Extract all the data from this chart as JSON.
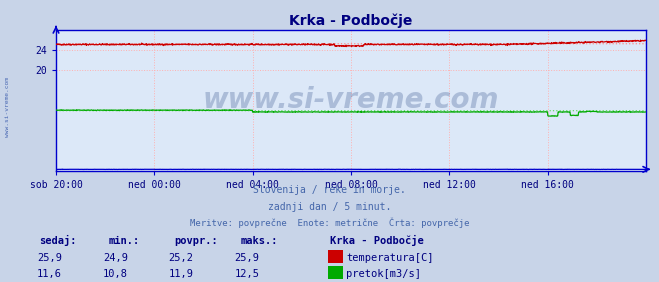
{
  "title": "Krka - Podbočje",
  "title_color": "#000080",
  "bg_color": "#c8d4e8",
  "plot_bg_color": "#dce8f8",
  "grid_color": "#ffb0b0",
  "xlabel_color": "#000080",
  "tick_color": "#000080",
  "axis_color": "#0000cc",
  "subtitle_lines": [
    "Slovenija / reke in morje.",
    "zadnji dan / 5 minut.",
    "Meritve: povprečne  Enote: metrične  Črta: povprečje"
  ],
  "subtitle_color": "#4466aa",
  "xtick_labels": [
    "sob 20:00",
    "ned 00:00",
    "ned 04:00",
    "ned 08:00",
    "ned 12:00",
    "ned 16:00"
  ],
  "xtick_positions": [
    0,
    240,
    480,
    720,
    960,
    1200
  ],
  "n_points": 1440,
  "temp_base": 25.2,
  "temp_min": 24.9,
  "temp_max": 25.9,
  "temp_color": "#cc0000",
  "temp_avg_color": "#ff8888",
  "flow_base": 11.9,
  "flow_min": 10.8,
  "flow_max": 12.5,
  "flow_color": "#00aa00",
  "flow_avg_color": "#66dd66",
  "height_color": "#0000cc",
  "ylim_min": 0,
  "ylim_max": 28.0,
  "ytick_vals": [
    20,
    24
  ],
  "watermark": "www.si-vreme.com",
  "watermark_color": "#1a3a7a",
  "watermark_alpha": 0.25,
  "sidebar_text": "www.si-vreme.com",
  "sidebar_color": "#3355aa",
  "legend_title": "Krka - Podbočje",
  "legend_color": "#000080",
  "table_header": [
    "sedaj:",
    "min.:",
    "povpr.:",
    "maks.:"
  ],
  "table_rows": [
    [
      "25,9",
      "24,9",
      "25,2",
      "25,9"
    ],
    [
      "11,6",
      "10,8",
      "11,9",
      "12,5"
    ]
  ],
  "table_row_labels": [
    "temperatura[C]",
    "pretok[m3/s]"
  ],
  "table_colors": [
    "#cc0000",
    "#00aa00"
  ],
  "table_text_color": "#000080",
  "table_header_color": "#000080"
}
